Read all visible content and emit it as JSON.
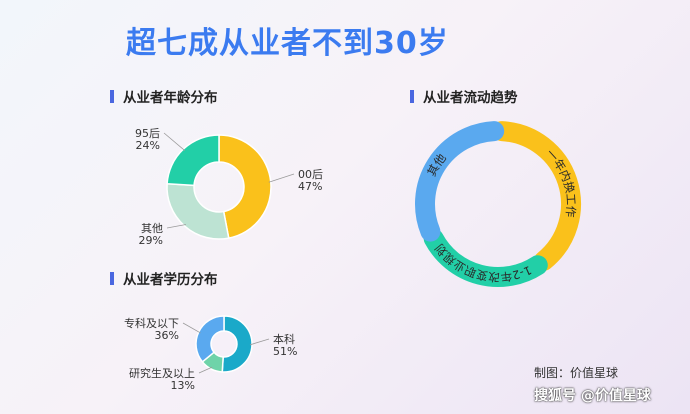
{
  "title": "超七成从业者不到30岁",
  "sections": {
    "age": "从业者年龄分布",
    "flow": "从业者流动趋势",
    "edu": "从业者学历分布"
  },
  "credit": "制图：价值星球",
  "watermark": "搜狐号 @价值星球",
  "colors": {
    "title": "#3b7bf0",
    "section_marker": "#4a67e0",
    "yellow": "#fac11b",
    "green": "#22cfa7",
    "light_green": "#bde3d3",
    "blue": "#5aa9ef",
    "teal": "#1aa9c9",
    "mint": "#6fd3a9"
  },
  "chart_data": [
    {
      "type": "pie",
      "title": "从业者年龄分布",
      "slices": [
        {
          "name": "00后",
          "value": 47,
          "label": "47%",
          "color": "#fac11b"
        },
        {
          "name": "其他",
          "value": 29,
          "label": "29%",
          "color": "#bde3d3"
        },
        {
          "name": "95后",
          "value": 24,
          "label": "24%",
          "color": "#22cfa7"
        }
      ]
    },
    {
      "type": "pie",
      "title": "从业者学历分布",
      "slices": [
        {
          "name": "本科",
          "value": 51,
          "label": "51%",
          "color": "#1aa9c9"
        },
        {
          "name": "研究生及以上",
          "value": 13,
          "label": "13%",
          "color": "#6fd3a9"
        },
        {
          "name": "专科及以下",
          "value": 36,
          "label": "36%",
          "color": "#5aa9ef"
        }
      ]
    },
    {
      "type": "pie",
      "title": "从业者流动趋势",
      "slices": [
        {
          "name": "一年内换工作",
          "value": 40,
          "color": "#fac11b"
        },
        {
          "name": "1-2年改变职业规划",
          "value": 28,
          "color": "#22cfa7"
        },
        {
          "name": "其他",
          "value": 32,
          "color": "#5aa9ef"
        }
      ]
    }
  ]
}
